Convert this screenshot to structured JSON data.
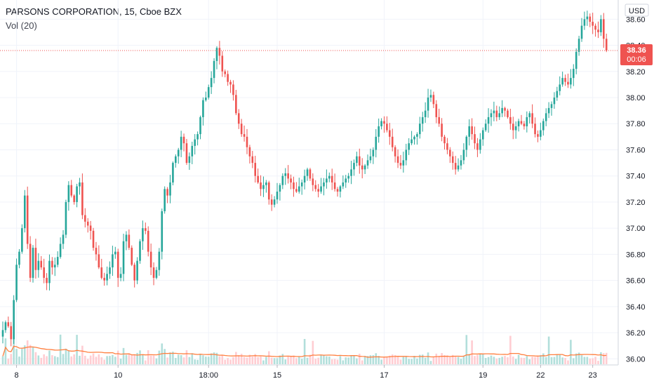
{
  "header": {
    "title": "PARSONS CORPORATION, 15, Cboe BZX",
    "volume_label": "Vol (20)"
  },
  "currency": "USD",
  "last_price": {
    "price": "38.36",
    "countdown": "00:06",
    "value": 38.36,
    "color": "#ef5350"
  },
  "colors": {
    "up": "#26a69a",
    "down": "#ef5350",
    "up_vol": "#b2dfdb",
    "down_vol": "#ffcdd2",
    "ma": "#ff7f3f",
    "grid": "#f0f3fa"
  },
  "chart_data": {
    "type": "candlestick",
    "ylim": [
      35.98,
      38.72
    ],
    "yticks": [
      "36.00",
      "36.20",
      "36.40",
      "36.60",
      "36.80",
      "37.00",
      "37.20",
      "37.40",
      "37.60",
      "37.80",
      "38.00",
      "38.20",
      "38.40",
      "38.60"
    ],
    "xticks": [
      {
        "label": "8",
        "bar": 5
      },
      {
        "label": "10",
        "bar": 42
      },
      {
        "label": "18:00",
        "bar": 75
      },
      {
        "label": "15",
        "bar": 100
      },
      {
        "label": "17",
        "bar": 139
      },
      {
        "label": "19",
        "bar": 175
      },
      {
        "label": "22",
        "bar": 196
      },
      {
        "label": "23",
        "bar": 215
      }
    ],
    "close": [
      36.22,
      36.28,
      36.25,
      36.15,
      36.45,
      36.72,
      36.82,
      37.0,
      37.25,
      36.88,
      36.62,
      36.85,
      36.68,
      36.75,
      36.7,
      36.62,
      36.58,
      36.75,
      36.7,
      36.72,
      36.78,
      36.88,
      36.95,
      37.2,
      37.33,
      37.25,
      37.2,
      37.32,
      37.35,
      37.1,
      37.05,
      37.02,
      36.98,
      36.85,
      36.8,
      36.7,
      36.62,
      36.6,
      36.65,
      36.7,
      36.8,
      36.82,
      36.62,
      36.65,
      36.9,
      36.95,
      36.85,
      36.72,
      36.6,
      36.75,
      36.9,
      37.0,
      36.98,
      36.82,
      36.7,
      36.62,
      36.68,
      36.82,
      37.13,
      37.3,
      37.25,
      37.35,
      37.5,
      37.55,
      37.6,
      37.7,
      37.65,
      37.5,
      37.55,
      37.63,
      37.68,
      37.72,
      37.85,
      37.98,
      38.0,
      38.08,
      38.15,
      38.28,
      38.38,
      38.32,
      38.2,
      38.18,
      38.12,
      38.1,
      38.02,
      37.88,
      37.8,
      37.72,
      37.7,
      37.62,
      37.55,
      37.5,
      37.4,
      37.35,
      37.3,
      37.33,
      37.35,
      37.22,
      37.18,
      37.22,
      37.28,
      37.33,
      37.4,
      37.42,
      37.38,
      37.35,
      37.3,
      37.28,
      37.32,
      37.35,
      37.4,
      37.45,
      37.38,
      37.33,
      37.3,
      37.28,
      37.32,
      37.35,
      37.38,
      37.4,
      37.35,
      37.3,
      37.28,
      37.32,
      37.35,
      37.38,
      37.4,
      37.45,
      37.5,
      37.55,
      37.48,
      37.45,
      37.48,
      37.52,
      37.55,
      37.6,
      37.7,
      37.78,
      37.82,
      37.8,
      37.75,
      37.7,
      37.62,
      37.55,
      37.5,
      37.48,
      37.52,
      37.6,
      37.65,
      37.68,
      37.7,
      37.72,
      37.8,
      37.85,
      37.9,
      38.0,
      38.02,
      37.95,
      37.85,
      37.8,
      37.7,
      37.65,
      37.6,
      37.55,
      37.5,
      37.45,
      37.48,
      37.52,
      37.6,
      37.7,
      37.78,
      37.72,
      37.65,
      37.6,
      37.68,
      37.75,
      37.8,
      37.85,
      37.88,
      37.9,
      37.85,
      37.88,
      37.92,
      37.9,
      37.85,
      37.8,
      37.75,
      37.78,
      37.82,
      37.8,
      37.78,
      37.85,
      37.88,
      37.8,
      37.72,
      37.7,
      37.75,
      37.82,
      37.88,
      37.92,
      37.95,
      38.0,
      38.05,
      38.1,
      38.15,
      38.12,
      38.1,
      38.15,
      38.22,
      38.35,
      38.45,
      38.55,
      38.6,
      38.62,
      38.58,
      38.55,
      38.52,
      38.5,
      38.6,
      38.45,
      38.36
    ]
  }
}
